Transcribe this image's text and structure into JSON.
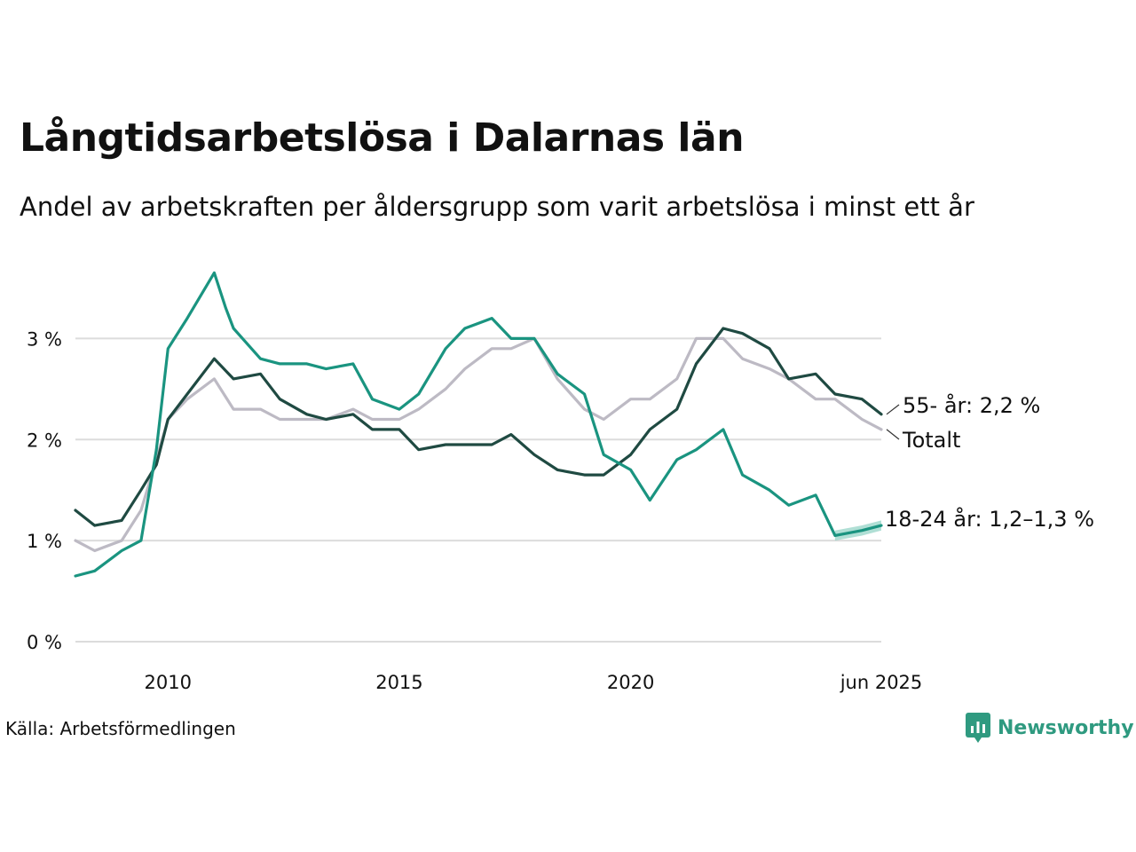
{
  "title": "Långtidsarbetslösa i Dalarnas län",
  "subtitle": "Andel av arbetskraften per åldersgrupp som varit arbetslösa i minst ett år",
  "source": "Källa: Arbetsförmedlingen",
  "brand": {
    "name": "Newsworthy",
    "icon": "newsworthy-logo-icon",
    "color": "#2f9a80"
  },
  "colors": {
    "youth": "#1a9480",
    "senior": "#1f4a42",
    "total": "#bdbac4",
    "youth_band": "#8fd1c3",
    "grid": "#dcdcdc"
  },
  "chart_data": {
    "type": "line",
    "x_range": [
      "2008-01",
      "2025-06"
    ],
    "ylim": [
      0,
      3.75
    ],
    "y_ticks": [
      0,
      1,
      2,
      3
    ],
    "y_tick_labels": [
      "0 %",
      "1 %",
      "2 %",
      "3 %"
    ],
    "x_ticks": [
      "2010-01",
      "2015-01",
      "2020-01",
      "2025-06"
    ],
    "x_tick_labels": [
      "2010",
      "2015",
      "2020",
      "jun 2025"
    ],
    "grid": "horizontal",
    "series": [
      {
        "key": "total",
        "end_label": "Totalt",
        "x": [
          "2008-01",
          "2008-06",
          "2009-01",
          "2009-06",
          "2009-10",
          "2010-01",
          "2010-06",
          "2011-01",
          "2011-06",
          "2012-01",
          "2012-06",
          "2013-01",
          "2013-06",
          "2014-01",
          "2014-06",
          "2015-01",
          "2015-06",
          "2016-01",
          "2016-06",
          "2017-01",
          "2017-06",
          "2017-12",
          "2018-06",
          "2019-01",
          "2019-06",
          "2020-01",
          "2020-06",
          "2021-01",
          "2021-06",
          "2022-01",
          "2022-06",
          "2023-01",
          "2023-06",
          "2024-01",
          "2024-06",
          "2025-01",
          "2025-06"
        ],
        "values": [
          1.0,
          0.9,
          1.0,
          1.3,
          1.8,
          2.2,
          2.4,
          2.6,
          2.3,
          2.3,
          2.2,
          2.2,
          2.2,
          2.3,
          2.2,
          2.2,
          2.3,
          2.5,
          2.7,
          2.9,
          2.9,
          3.0,
          2.6,
          2.3,
          2.2,
          2.4,
          2.4,
          2.6,
          3.0,
          3.0,
          2.8,
          2.7,
          2.6,
          2.4,
          2.4,
          2.2,
          2.1
        ]
      },
      {
        "key": "senior",
        "end_label": "55- år: 2,2 %",
        "x": [
          "2008-01",
          "2008-06",
          "2009-01",
          "2009-06",
          "2009-10",
          "2010-01",
          "2010-06",
          "2011-01",
          "2011-06",
          "2012-01",
          "2012-06",
          "2013-01",
          "2013-06",
          "2014-01",
          "2014-06",
          "2015-01",
          "2015-06",
          "2016-01",
          "2016-06",
          "2017-01",
          "2017-06",
          "2017-12",
          "2018-06",
          "2019-01",
          "2019-06",
          "2020-01",
          "2020-06",
          "2021-01",
          "2021-06",
          "2022-01",
          "2022-06",
          "2023-01",
          "2023-06",
          "2024-01",
          "2024-06",
          "2025-01",
          "2025-06"
        ],
        "values": [
          1.3,
          1.15,
          1.2,
          1.5,
          1.75,
          2.2,
          2.45,
          2.8,
          2.6,
          2.65,
          2.4,
          2.25,
          2.2,
          2.25,
          2.1,
          2.1,
          1.9,
          1.95,
          1.95,
          1.95,
          2.05,
          1.85,
          1.7,
          1.65,
          1.65,
          1.85,
          2.1,
          2.3,
          2.75,
          3.1,
          3.05,
          2.9,
          2.6,
          2.65,
          2.45,
          2.4,
          2.25
        ]
      },
      {
        "key": "youth",
        "end_label": "18-24 år: 1,2–1,3 %",
        "x": [
          "2008-01",
          "2008-06",
          "2009-01",
          "2009-06",
          "2009-10",
          "2010-01",
          "2010-06",
          "2011-01",
          "2011-04",
          "2011-06",
          "2012-01",
          "2012-06",
          "2013-01",
          "2013-06",
          "2014-01",
          "2014-06",
          "2015-01",
          "2015-06",
          "2016-01",
          "2016-06",
          "2017-01",
          "2017-06",
          "2017-12",
          "2018-06",
          "2019-01",
          "2019-06",
          "2020-01",
          "2020-06",
          "2021-01",
          "2021-06",
          "2022-01",
          "2022-06",
          "2023-01",
          "2023-06",
          "2024-01",
          "2024-06",
          "2025-01",
          "2025-06"
        ],
        "values": [
          0.65,
          0.7,
          0.9,
          1.0,
          1.9,
          2.9,
          3.2,
          3.65,
          3.3,
          3.1,
          2.8,
          2.75,
          2.75,
          2.7,
          2.75,
          2.4,
          2.3,
          2.45,
          2.9,
          3.1,
          3.2,
          3.0,
          3.0,
          2.65,
          2.45,
          1.85,
          1.7,
          1.4,
          1.8,
          1.9,
          2.1,
          1.65,
          1.5,
          1.35,
          1.45,
          1.05,
          1.1,
          1.15
        ]
      }
    ]
  }
}
